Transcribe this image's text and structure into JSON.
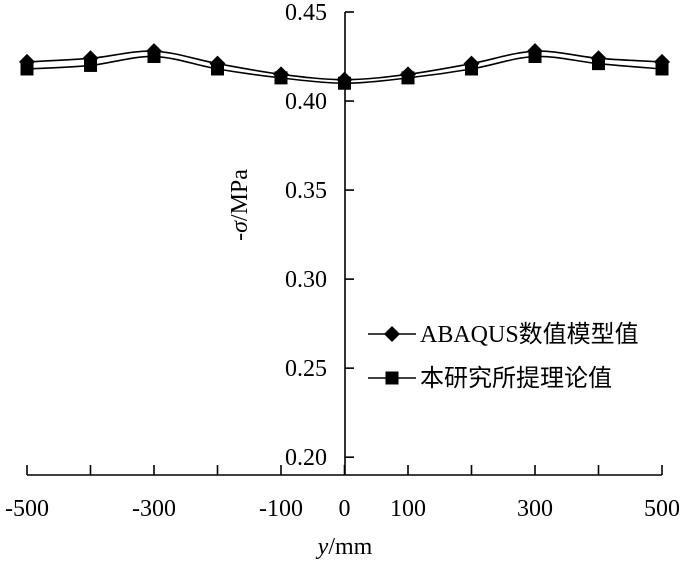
{
  "chart_data": {
    "type": "line",
    "xlabel_var": "y",
    "xlabel_unit": "/mm",
    "ylabel_prefix": "-",
    "ylabel_var": "σ",
    "ylabel_unit": "/MPa",
    "xlim": [
      -500,
      500
    ],
    "ylim": [
      0.19,
      0.45
    ],
    "x_ticks": [
      -500,
      -400,
      -300,
      -200,
      -100,
      0,
      100,
      200,
      300,
      400,
      500
    ],
    "x_tick_labels": [
      "-500",
      "",
      "-300",
      "",
      "-100",
      "0",
      "100",
      "",
      "300",
      "",
      "500"
    ],
    "y_ticks": [
      0.2,
      0.25,
      0.3,
      0.35,
      0.4,
      0.45
    ],
    "y_tick_labels": [
      "0.20",
      "0.25",
      "0.30",
      "0.35",
      "0.40",
      "0.45"
    ],
    "grid": false,
    "legend_position": "lower-right",
    "x": [
      -500,
      -400,
      -300,
      -200,
      -100,
      0,
      100,
      200,
      300,
      400,
      500
    ],
    "series": [
      {
        "name": "ABAQUS数值模型值",
        "marker": "diamond",
        "color": "#000000",
        "values": [
          0.422,
          0.424,
          0.428,
          0.421,
          0.415,
          0.412,
          0.415,
          0.421,
          0.428,
          0.424,
          0.422
        ]
      },
      {
        "name": "本研究所提理论值",
        "marker": "square",
        "color": "#000000",
        "values": [
          0.418,
          0.42,
          0.425,
          0.418,
          0.413,
          0.41,
          0.413,
          0.418,
          0.425,
          0.421,
          0.418
        ]
      }
    ]
  }
}
